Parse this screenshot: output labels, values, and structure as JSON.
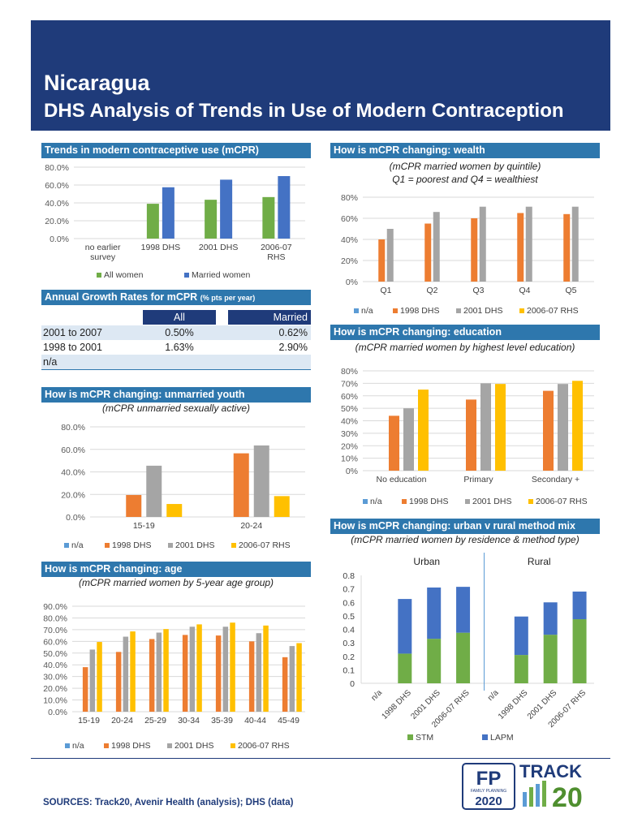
{
  "header": {
    "country": "Nicaragua",
    "subtitle": "DHS Analysis of Trends in Use of Modern Contraception"
  },
  "sections": {
    "trends": "Trends in modern contraceptive use (mCPR)",
    "growth": "Annual Growth Rates for mCPR",
    "growth_unit": "(% pts per year)",
    "youth": "How is mCPR changing: unmarried youth",
    "age": "How is mCPR changing: age",
    "wealth": "How is mCPR changing: wealth",
    "education": "How is mCPR changing: education",
    "urban": "How is mCPR changing: urban v rural method mix"
  },
  "subtitles": {
    "youth": "(mCPR unmarried sexually active)",
    "age": "(mCPR married women by 5-year age group)",
    "wealth1": "(mCPR married women by quintile)",
    "wealth2": "Q1 = poorest and Q4 = wealthiest",
    "education": "(mCPR married women by highest level education)",
    "urban": "(mCPR married women by residence & method type)"
  },
  "growth_table": {
    "headers": [
      "All",
      "Married"
    ],
    "rows": [
      {
        "label": "2001 to 2007",
        "all": "0.50%",
        "married": "0.62%"
      },
      {
        "label": "1998 to 2001",
        "all": "1.63%",
        "married": "2.90%"
      },
      {
        "label": "n/a",
        "all": "",
        "married": ""
      }
    ]
  },
  "colors": {
    "banner": "#1f3b7a",
    "section": "#2e77ad",
    "na": "#5b9bd5",
    "dhs1998": "#ed7d31",
    "dhs2001": "#a5a5a5",
    "rhs2006": "#ffc000",
    "all_women": "#70ad47",
    "married": "#4472c4",
    "stm": "#70ad47",
    "lapm": "#4472c4"
  },
  "chart_data": [
    {
      "id": "trends",
      "type": "bar",
      "categories": [
        "no earlier survey",
        "1998 DHS",
        "2001 DHS",
        "2006-07 RHS"
      ],
      "series": [
        {
          "name": "All women",
          "values": [
            null,
            39,
            43.5,
            46.5
          ]
        },
        {
          "name": "Married women",
          "values": [
            null,
            57.5,
            66,
            70
          ]
        }
      ],
      "yticks": [
        "0.0%",
        "20.0%",
        "40.0%",
        "60.0%",
        "80.0%"
      ],
      "ylim": [
        0,
        80
      ]
    },
    {
      "id": "youth",
      "type": "bar",
      "categories": [
        "15-19",
        "20-24"
      ],
      "series": [
        {
          "name": "n/a",
          "values": [
            null,
            null
          ]
        },
        {
          "name": "1998 DHS",
          "values": [
            19.5,
            56.5
          ]
        },
        {
          "name": "2001 DHS",
          "values": [
            45.5,
            63.5
          ]
        },
        {
          "name": "2006-07 RHS",
          "values": [
            11.5,
            18.5
          ]
        }
      ],
      "yticks": [
        "0.0%",
        "20.0%",
        "40.0%",
        "60.0%",
        "80.0%"
      ],
      "ylim": [
        0,
        80
      ]
    },
    {
      "id": "age",
      "type": "bar",
      "categories": [
        "15-19",
        "20-24",
        "25-29",
        "30-34",
        "35-39",
        "40-44",
        "45-49"
      ],
      "series": [
        {
          "name": "n/a",
          "values": [
            null,
            null,
            null,
            null,
            null,
            null,
            null
          ]
        },
        {
          "name": "1998 DHS",
          "values": [
            38,
            51,
            62,
            65.5,
            65,
            60,
            46.5
          ]
        },
        {
          "name": "2001 DHS",
          "values": [
            53,
            64,
            67.5,
            72.5,
            72.5,
            67,
            56
          ]
        },
        {
          "name": "2006-07 RHS",
          "values": [
            59.5,
            68.5,
            70.5,
            74.5,
            76,
            73.5,
            58.5
          ]
        }
      ],
      "yticks": [
        "0.0%",
        "10.0%",
        "20.0%",
        "30.0%",
        "40.0%",
        "50.0%",
        "60.0%",
        "70.0%",
        "80.0%",
        "90.0%"
      ],
      "ylim": [
        0,
        90
      ]
    },
    {
      "id": "wealth",
      "type": "bar",
      "categories": [
        "Q1",
        "Q2",
        "Q3",
        "Q4",
        "Q5"
      ],
      "series": [
        {
          "name": "n/a",
          "values": [
            null,
            null,
            null,
            null,
            null
          ]
        },
        {
          "name": "1998 DHS",
          "values": [
            40,
            55,
            60,
            65,
            64
          ]
        },
        {
          "name": "2001 DHS",
          "values": [
            50,
            66,
            71,
            71,
            71
          ]
        },
        {
          "name": "2006-07 RHS",
          "values": [
            null,
            null,
            null,
            null,
            null
          ]
        }
      ],
      "yticks": [
        "0%",
        "20%",
        "40%",
        "60%",
        "80%"
      ],
      "ylim": [
        0,
        80
      ]
    },
    {
      "id": "education",
      "type": "bar",
      "categories": [
        "No education",
        "Primary",
        "Secondary +"
      ],
      "series": [
        {
          "name": "n/a",
          "values": [
            null,
            null,
            null
          ]
        },
        {
          "name": "1998 DHS",
          "values": [
            44,
            57,
            64
          ]
        },
        {
          "name": "2001 DHS",
          "values": [
            50,
            70,
            69.5
          ]
        },
        {
          "name": "2006-07 RHS",
          "values": [
            65,
            69.5,
            72
          ]
        }
      ],
      "yticks": [
        "0%",
        "10%",
        "20%",
        "30%",
        "40%",
        "50%",
        "60%",
        "70%",
        "80%"
      ],
      "ylim": [
        0,
        80
      ]
    },
    {
      "id": "urban",
      "type": "stacked-bar",
      "panels": [
        "Urban",
        "Rural"
      ],
      "categories": [
        "n/a",
        "1998 DHS",
        "2001 DHS",
        "2006-07 RHS",
        "n/a",
        "1998 DHS",
        "2001 DHS",
        "2006-07 RHS"
      ],
      "series": [
        {
          "name": "STM",
          "values": [
            null,
            0.22,
            0.33,
            0.375,
            null,
            0.21,
            0.36,
            0.475
          ]
        },
        {
          "name": "LAPM",
          "values": [
            null,
            0.405,
            0.38,
            0.34,
            null,
            0.285,
            0.24,
            0.205
          ]
        }
      ],
      "yticks": [
        "0",
        "0.1",
        "0.2",
        "0.3",
        "0.4",
        "0.5",
        "0.6",
        "0.7",
        "0.8"
      ],
      "ylim": [
        0,
        0.8
      ]
    }
  ],
  "logos": {
    "fp2020_top": "FP",
    "fp2020_sub": "FAMILY PLANNING",
    "fp2020_year": "2020",
    "track": "TRACK",
    "track_num": "20"
  },
  "footer": {
    "sources": "SOURCES: Track20, Avenir Health (analysis); DHS (data)"
  }
}
